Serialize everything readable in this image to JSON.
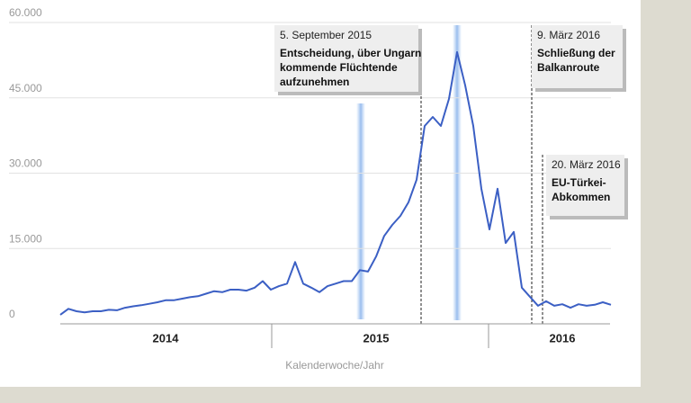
{
  "chart_data": {
    "type": "line",
    "x_label": "Kalenderwoche/Jahr",
    "categories": [
      null,
      null,
      null,
      null,
      null,
      null,
      null,
      null,
      null,
      null,
      null,
      null,
      null,
      "2014",
      null,
      null,
      null,
      null,
      null,
      null,
      null,
      null,
      null,
      null,
      null,
      null,
      null,
      null,
      null,
      null,
      null,
      null,
      null,
      null,
      null,
      null,
      null,
      null,
      null,
      "2015",
      null,
      null,
      null,
      null,
      null,
      null,
      null,
      null,
      null,
      null,
      null,
      null,
      null,
      null,
      null,
      null,
      null,
      null,
      null,
      null,
      null,
      null,
      "2016",
      null,
      null,
      null,
      null,
      null,
      null
    ],
    "values": [
      1800,
      3000,
      2500,
      2300,
      2500,
      2500,
      2800,
      2700,
      3200,
      3500,
      3700,
      4000,
      4300,
      4700,
      4700,
      5000,
      5300,
      5500,
      6000,
      6500,
      6300,
      6800,
      6800,
      6600,
      7200,
      8500,
      6800,
      7500,
      8000,
      12300,
      8000,
      7200,
      6300,
      7500,
      8000,
      8500,
      8500,
      10700,
      10400,
      13400,
      17500,
      19700,
      21500,
      24200,
      28700,
      39400,
      41200,
      39400,
      44800,
      54100,
      47500,
      39400,
      26900,
      18800,
      26900,
      16100,
      18300,
      7200,
      5400,
      3600,
      4500,
      3600,
      3900,
      3200,
      3900,
      3600,
      3800,
      4300,
      3800
    ],
    "color": "#3b5fc4",
    "ylim": [
      0,
      60000
    ],
    "yticks": [
      0,
      {
        "value": 15000,
        "label": "15.000"
      },
      {
        "value": 30000,
        "label": "30.000"
      },
      {
        "value": 45000,
        "label": "45.000"
      },
      {
        "value": 60000,
        "label": "60.000"
      }
    ],
    "grid": true,
    "annotations": [
      {
        "date": "5. September 2015",
        "lines": [
          "Entscheidung, über Ungarn",
          "kommende Flüchtende",
          "aufzunehmen"
        ]
      },
      {
        "date": "9. März 2016",
        "lines": [
          "Schließung der",
          "Balkanroute"
        ]
      },
      {
        "date": "20. März 2016",
        "lines": [
          "EU-Türkei-",
          "Abkommen"
        ]
      }
    ]
  }
}
